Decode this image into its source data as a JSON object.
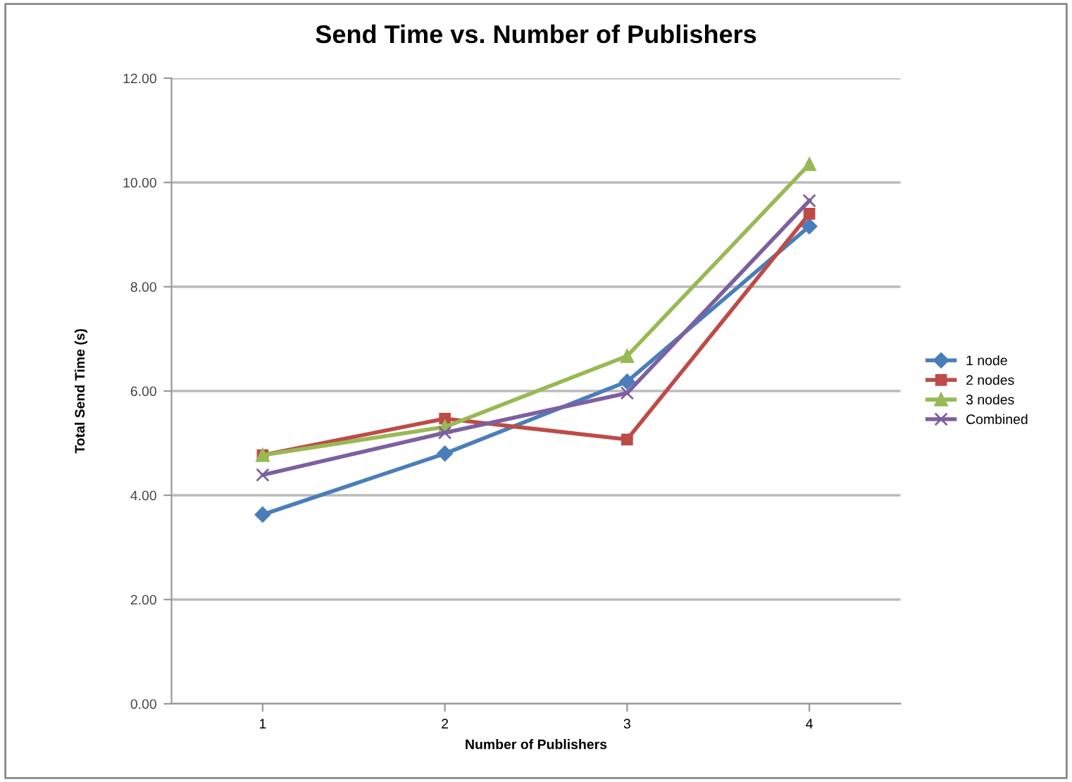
{
  "chart_data": {
    "type": "line",
    "title": "Send Time vs. Number of Publishers",
    "xlabel": "Number of Publishers",
    "ylabel": "Total Send Time (s)",
    "categories": [
      "1",
      "2",
      "3",
      "4"
    ],
    "series": [
      {
        "name": "1 node",
        "color": "#4a7ebb",
        "marker": "diamond",
        "values": [
          3.63,
          4.8,
          6.18,
          9.16
        ]
      },
      {
        "name": "2 nodes",
        "color": "#be4b48",
        "marker": "square",
        "values": [
          4.77,
          5.47,
          5.07,
          9.4
        ]
      },
      {
        "name": "3 nodes",
        "color": "#98b954",
        "marker": "triangle",
        "values": [
          4.77,
          5.31,
          6.67,
          10.35
        ]
      },
      {
        "name": "Combined",
        "color": "#7d60a0",
        "marker": "cross",
        "values": [
          4.39,
          5.2,
          5.96,
          9.65
        ]
      }
    ],
    "ylim": [
      0,
      12
    ],
    "yticks": [
      {
        "value": 0,
        "label": "0.00"
      },
      {
        "value": 2,
        "label": "2.00"
      },
      {
        "value": 4,
        "label": "4.00"
      },
      {
        "value": 6,
        "label": "6.00"
      },
      {
        "value": 8,
        "label": "8.00"
      },
      {
        "value": 10,
        "label": "10.00"
      },
      {
        "value": 12,
        "label": "12.00"
      }
    ],
    "grid": "y",
    "legend": "right",
    "line_style": "solid"
  }
}
